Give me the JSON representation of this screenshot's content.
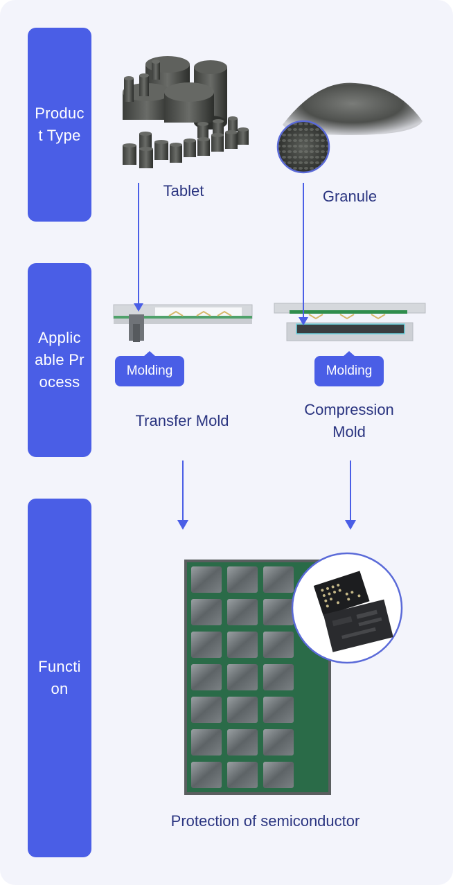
{
  "side_labels": {
    "product_type": "Product Type",
    "applicable_process": "Applicable Process",
    "function": "Function"
  },
  "products": {
    "tablet": "Tablet",
    "granule": "Granule"
  },
  "processes": {
    "transfer": {
      "badge": "Molding",
      "name": "Transfer Mold"
    },
    "compression": {
      "badge": "Molding",
      "name_line1": "Compression",
      "name_line2": "Mold"
    }
  },
  "function": {
    "caption": "Protection of semiconductor"
  },
  "colors": {
    "accent": "#4a5ee6",
    "text": "#2a3480",
    "background": "#f3f4fb"
  },
  "icons": [
    "tablet-pellets-image",
    "granule-pile-image",
    "transfer-mold-diagram",
    "compression-mold-diagram",
    "chip-tray-image",
    "chip-closeup-image"
  ]
}
